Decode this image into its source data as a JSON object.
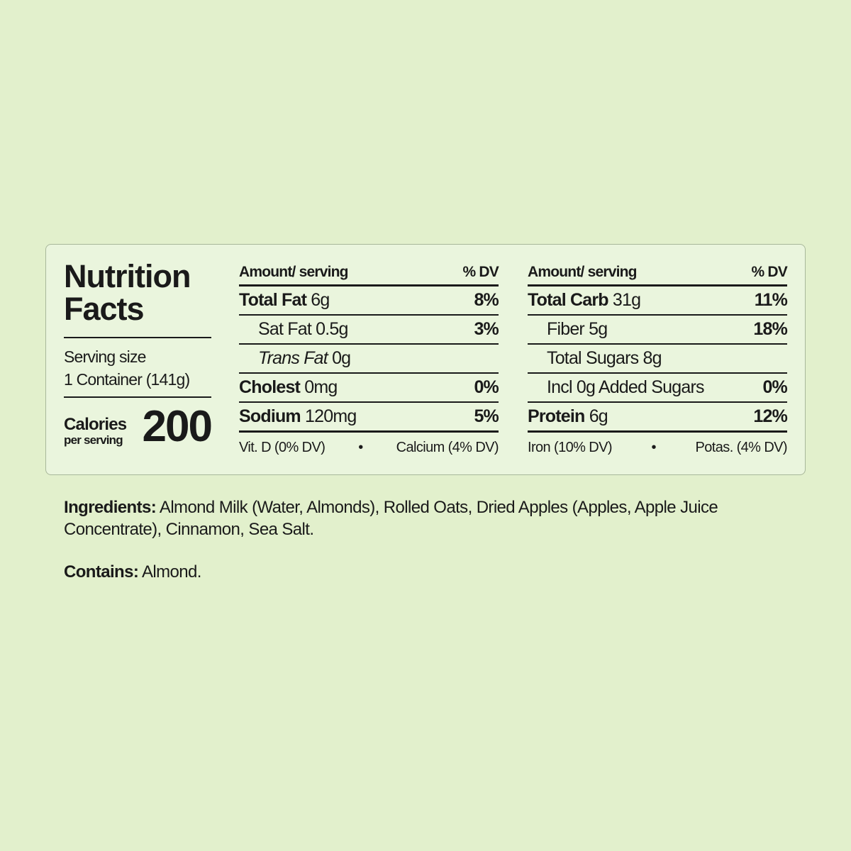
{
  "label": {
    "title_line1": "Nutrition",
    "title_line2": "Facts",
    "serving_size_label": "Serving size",
    "serving_size_value": "1 Container (141g)",
    "calories_label": "Calories",
    "calories_sub": "per serving",
    "calories_value": "200",
    "columns": [
      {
        "header_amount": "Amount/ serving",
        "header_dv": "% DV",
        "rows": [
          {
            "name": "Total Fat",
            "amount": "6g",
            "dv": "8%",
            "bold": true
          },
          {
            "name": "Sat Fat",
            "amount": "0.5g",
            "dv": "3%"
          },
          {
            "name": "Trans Fat",
            "amount": "0g",
            "dv": ""
          },
          {
            "name": "Cholest",
            "amount": "0mg",
            "dv": "0%",
            "bold": true
          },
          {
            "name": "Sodium",
            "amount": "120mg",
            "dv": "5%",
            "bold": true
          }
        ],
        "footer_left": "Vit. D (0% DV)",
        "footer_sep": "•",
        "footer_right": "Calcium (4% DV)"
      },
      {
        "header_amount": "Amount/ serving",
        "header_dv": "% DV",
        "rows": [
          {
            "name": "Total Carb",
            "amount": "31g",
            "dv": "11%",
            "bold": true
          },
          {
            "name": "Fiber",
            "amount": "5g",
            "dv": "18%"
          },
          {
            "name": "Total Sugars",
            "amount": "8g",
            "dv": ""
          },
          {
            "name": "Incl 0g Added Sugars",
            "amount": "",
            "dv": "0%"
          },
          {
            "name": "Protein",
            "amount": "6g",
            "dv": "12%",
            "bold": true
          }
        ],
        "footer_left": "Iron (10% DV)",
        "footer_sep": "•",
        "footer_right": "Potas. (4% DV)"
      }
    ]
  },
  "ingredients": {
    "label": "Ingredients:",
    "text": "Almond Milk (Water, Almonds), Rolled Oats, Dried Apples (Apples, Apple Juice Concentrate), Cinnamon, Sea Salt."
  },
  "contains": {
    "label": "Contains:",
    "text": "Almond."
  },
  "colors": {
    "background": "#e2f0cc",
    "panel": "#eaf5dd",
    "text": "#1a1a1a"
  }
}
